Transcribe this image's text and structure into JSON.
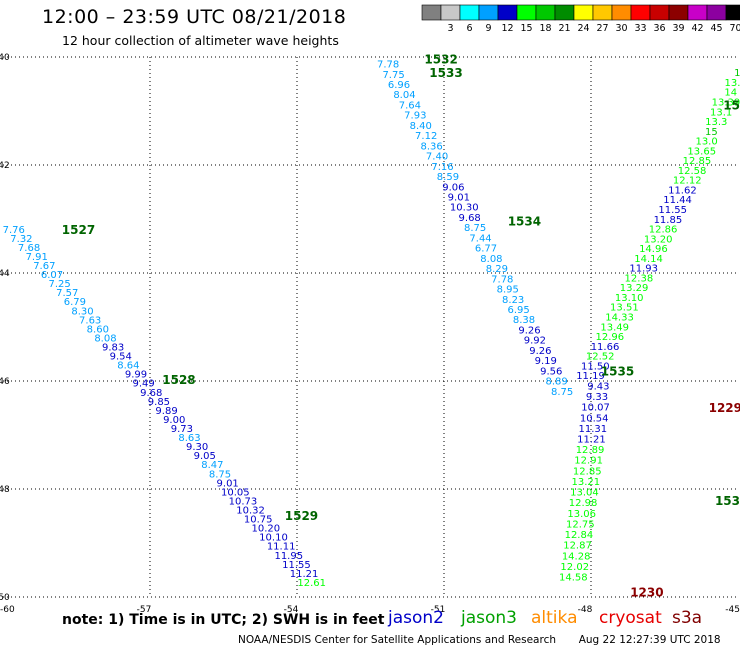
{
  "header": {
    "title": "12:00 – 23:59 UTC 08/21/2018",
    "subtitle": "12 hour collection of altimeter wave heights"
  },
  "footer": {
    "note": "note: 1) Time is in UTC; 2) SWH is in feet",
    "credit": "NOAA/NESDIS Center for Satellite Applications and Research",
    "timestamp": "Aug 22 12:27:39 UTC 2018"
  },
  "satellites": [
    {
      "name": "jason2",
      "color": "#0000c8"
    },
    {
      "name": "jason3",
      "color": "#00a000"
    },
    {
      "name": "altika",
      "color": "#ff8c00"
    },
    {
      "name": "cryosat",
      "color": "#e60000"
    },
    {
      "name": "s3a",
      "color": "#800000"
    }
  ],
  "colorbar": {
    "unit": "(ft)",
    "bins": [
      {
        "label": "",
        "color": "#808080"
      },
      {
        "label": "3",
        "color": "#c8c8c8"
      },
      {
        "label": "6",
        "color": "#00ffff"
      },
      {
        "label": "9",
        "color": "#00a0ff"
      },
      {
        "label": "12",
        "color": "#0000c8"
      },
      {
        "label": "15",
        "color": "#00ff00"
      },
      {
        "label": "18",
        "color": "#00c800"
      },
      {
        "label": "21",
        "color": "#008c00"
      },
      {
        "label": "24",
        "color": "#ffff00"
      },
      {
        "label": "27",
        "color": "#ffc800"
      },
      {
        "label": "30",
        "color": "#ff8c00"
      },
      {
        "label": "33",
        "color": "#ff0000"
      },
      {
        "label": "36",
        "color": "#c80000"
      },
      {
        "label": "39",
        "color": "#8c0000"
      },
      {
        "label": "42",
        "color": "#c800c8"
      },
      {
        "label": "45",
        "color": "#8c00a0"
      },
      {
        "label": "70",
        "color": "#000000"
      }
    ]
  },
  "chart_data": {
    "type": "scatter",
    "xlim": [
      -60,
      -45
    ],
    "ylim": [
      -50,
      -40
    ],
    "x_ticks": [
      -60,
      -57,
      -54,
      -51,
      -48,
      -45
    ],
    "x_tick_labels": [
      "-60",
      "-57",
      "-54",
      "-51",
      "-48",
      "-45"
    ],
    "y_ticks": [
      -40,
      -42,
      -44,
      -46,
      -48,
      -50
    ],
    "y_tick_labels": [
      "-40",
      "-42",
      "-44",
      "-46",
      "-48",
      "-50"
    ],
    "grid": true,
    "tracks": [
      {
        "x0": -52.14,
        "y0": -40.14,
        "x1": -48.59,
        "y1": -46.2,
        "values": [
          "7.78",
          "7.75",
          "6.96",
          "8.04",
          "7.64",
          "7.93",
          "8.40",
          "7.12",
          "8.36",
          "7.40",
          "7.16",
          "8.59",
          "9.06",
          "9.01",
          "10.30",
          "9.68",
          "8.75",
          "7.44",
          "6.77",
          "8.08",
          "8.29",
          "7.78",
          "8.95",
          "8.23",
          "6.95",
          "8.38",
          "9.26",
          "9.92",
          "9.26",
          "9.19",
          "9.56",
          "8.89",
          "8.75"
        ]
      },
      {
        "x0": -48.01,
        "y0": -45.91,
        "x1": -44.95,
        "y1": -40.3,
        "values": [
          "11.19",
          "11.50",
          "12.52",
          "11.66",
          "12.96",
          "13.49",
          "14.33",
          "13.51",
          "13.10",
          "13.29",
          "12.38",
          "11.93",
          "14.14",
          "14.96",
          "13.20",
          "12.86",
          "11.85",
          "11.55",
          "11.44",
          "11.62",
          "12.12",
          "12.58",
          "12.85",
          "13.65",
          "13.0",
          "15",
          "13.3",
          "13.1",
          "13.39",
          "14",
          "13.3",
          "15"
        ]
      },
      {
        "x0": -47.85,
        "y0": -46.1,
        "x1": -48.36,
        "y1": -49.64,
        "values": [
          "9.43",
          "9.33",
          "10.07",
          "10.54",
          "11.31",
          "11.21",
          "12.89",
          "12.91",
          "12.85",
          "13.21",
          "13.04",
          "12.98",
          "13.06",
          "12.75",
          "12.84",
          "12.87",
          "14.28",
          "12.02",
          "14.58"
        ]
      },
      {
        "x0": -59.78,
        "y0": -43.2,
        "x1": -53.7,
        "y1": -49.74,
        "values": [
          "7.76",
          "7.32",
          "7.68",
          "7.91",
          "7.67",
          "6.07",
          "7.25",
          "7.57",
          "6.79",
          "8.30",
          "7.63",
          "8.60",
          "8.08",
          "9.83",
          "9.54",
          "8.64",
          "9.99",
          "9.49",
          "9.68",
          "9.85",
          "9.89",
          "9.00",
          "9.73",
          "8.63",
          "9.30",
          "9.05",
          "8.47",
          "8.75",
          "9.01",
          "10.05",
          "10.73",
          "10.32",
          "10.75",
          "10.20",
          "10.10",
          "11.11",
          "11.95",
          "11.55",
          "11.21",
          "12.61"
        ]
      }
    ],
    "pass_labels": [
      {
        "label": "1532",
        "x": -51.4,
        "y": -40.05,
        "color": "#006400"
      },
      {
        "label": "1533",
        "x": -51.3,
        "y": -40.3,
        "color": "#006400"
      },
      {
        "label": "1534",
        "x": -49.7,
        "y": -43.05,
        "color": "#006400"
      },
      {
        "label": "1535",
        "x": -47.8,
        "y": -45.82,
        "color": "#006400"
      },
      {
        "label": "1527",
        "x": -58.8,
        "y": -43.2,
        "color": "#006400"
      },
      {
        "label": "1528",
        "x": -56.75,
        "y": -45.98,
        "color": "#006400"
      },
      {
        "label": "1529",
        "x": -54.25,
        "y": -48.5,
        "color": "#006400"
      },
      {
        "label": "1229",
        "x": -45.6,
        "y": -46.5,
        "color": "#8b0000"
      },
      {
        "label": "1230",
        "x": -47.2,
        "y": -49.92,
        "color": "#8b0000"
      },
      {
        "label": "153",
        "x": -45.35,
        "y": -48.22,
        "color": "#006400"
      },
      {
        "label": "15",
        "x": -45.1,
        "y": -40.9,
        "color": "#006400"
      }
    ]
  }
}
